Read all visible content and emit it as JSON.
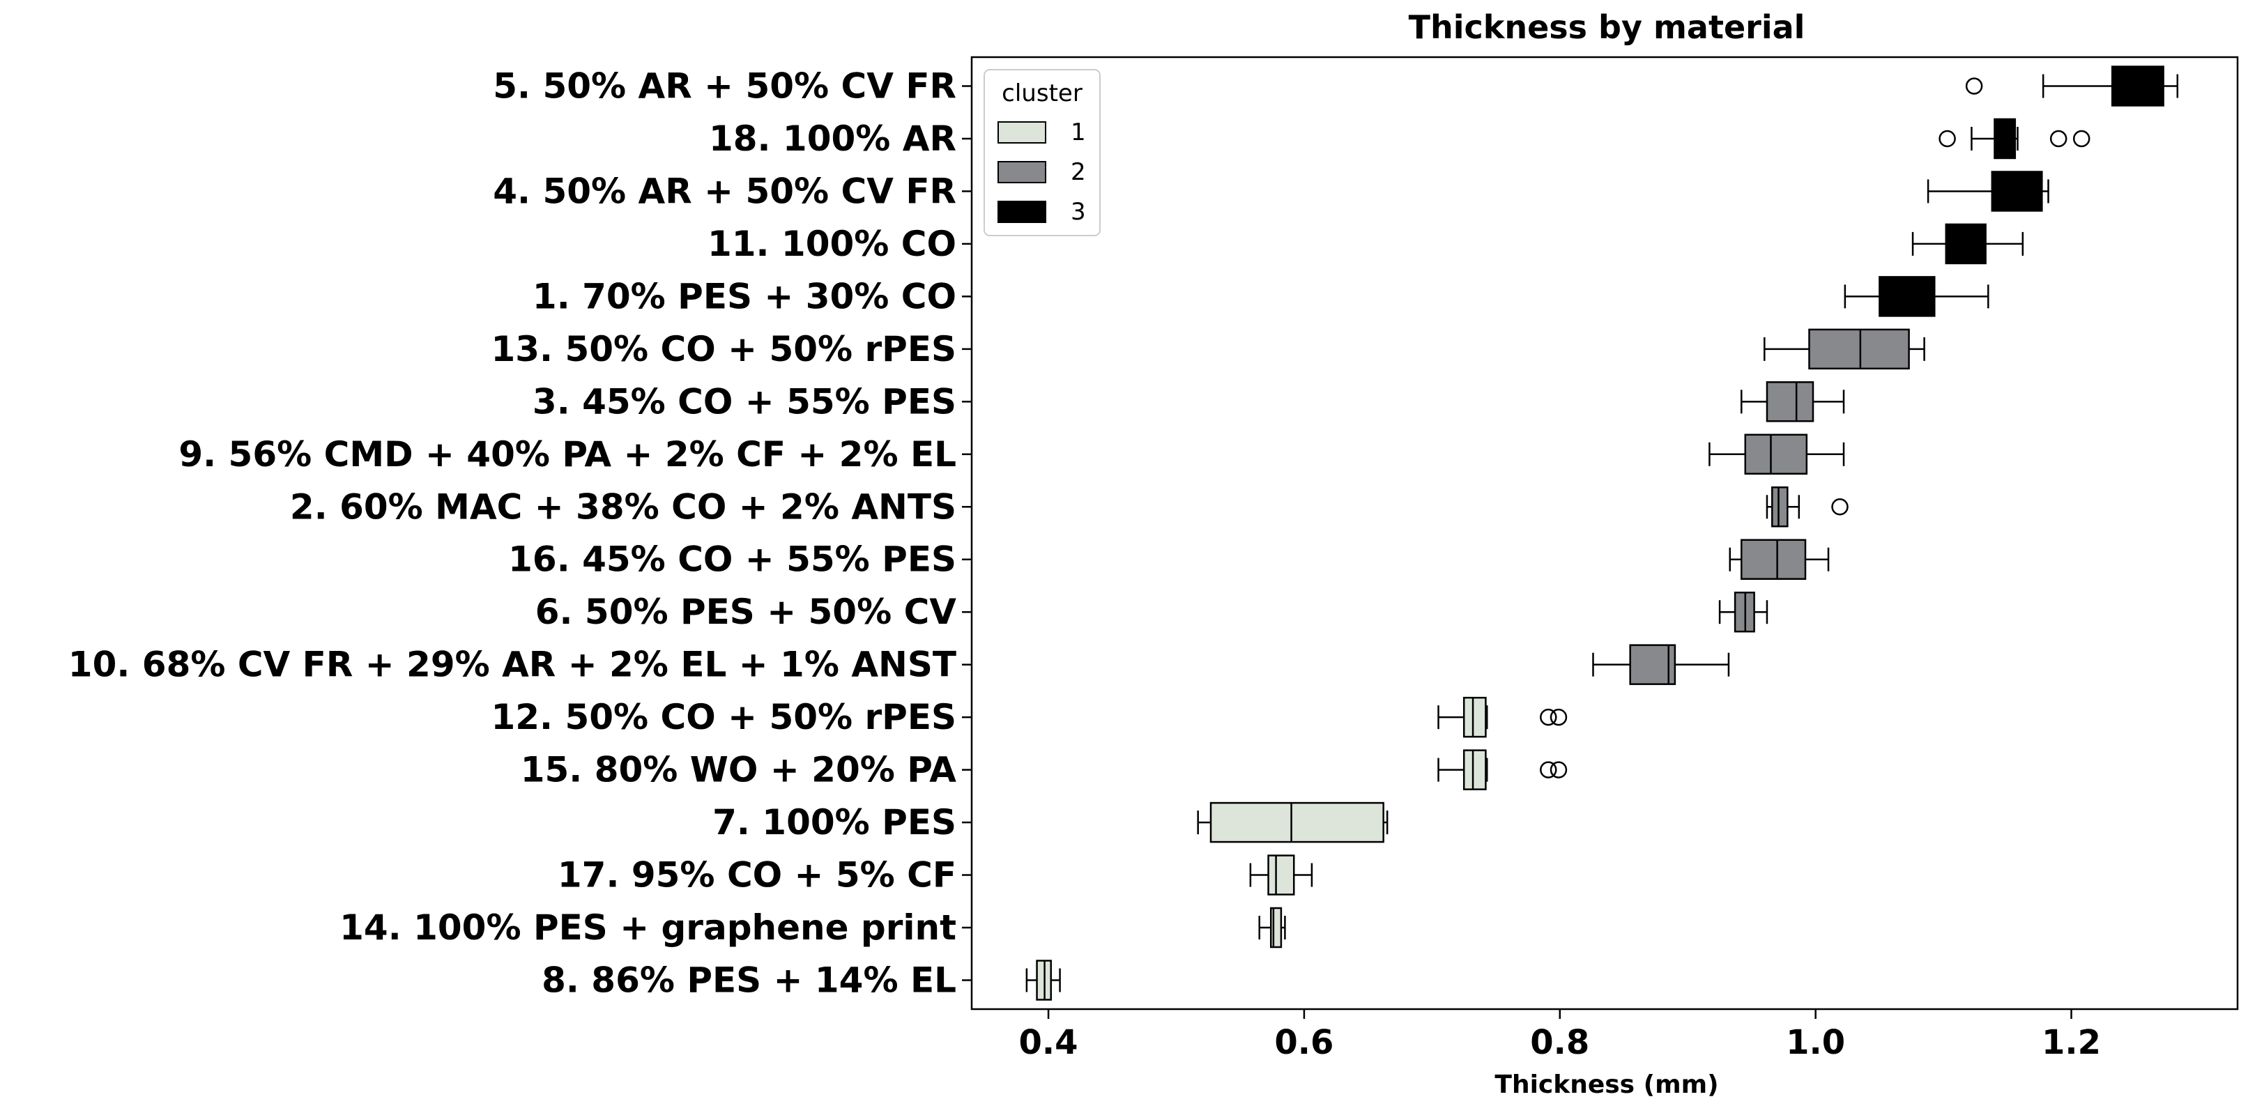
{
  "chart_data": {
    "type": "box",
    "title": "Thickness by material",
    "xlabel": "Thickness  (mm)",
    "ylabel": "",
    "xlim": [
      0.34,
      1.33
    ],
    "xticks": [
      0.4,
      0.6,
      0.8,
      1.0,
      1.2
    ],
    "xtick_labels": [
      "0.4",
      "0.6",
      "0.8",
      "1.0",
      "1.2"
    ],
    "grid": false,
    "legend": {
      "title": "cluster",
      "placement": "top-left",
      "entries": [
        {
          "label": "1",
          "color": "#dde5da"
        },
        {
          "label": "2",
          "color": "#87898c"
        },
        {
          "label": "3",
          "color": "#000000"
        }
      ]
    },
    "series": [
      {
        "category": "5. 50% AR + 50% CV FR",
        "cluster": "3",
        "whisker_low": 1.178,
        "q1": 1.232,
        "median": 1.255,
        "q3": 1.272,
        "whisker_high": 1.283,
        "outliers": [
          1.124
        ]
      },
      {
        "category": "18. 100% AR",
        "cluster": "3",
        "whisker_low": 1.122,
        "q1": 1.14,
        "median": 1.149,
        "q3": 1.156,
        "whisker_high": 1.158,
        "outliers": [
          1.103,
          1.19,
          1.208
        ]
      },
      {
        "category": "4. 50% AR + 50% CV FR",
        "cluster": "3",
        "whisker_low": 1.088,
        "q1": 1.138,
        "median": 1.16,
        "q3": 1.177,
        "whisker_high": 1.182,
        "outliers": []
      },
      {
        "category": "11. 100% CO",
        "cluster": "3",
        "whisker_low": 1.076,
        "q1": 1.102,
        "median": 1.12,
        "q3": 1.133,
        "whisker_high": 1.162,
        "outliers": []
      },
      {
        "category": "1. 70% PES + 30% CO",
        "cluster": "3",
        "whisker_low": 1.023,
        "q1": 1.05,
        "median": 1.07,
        "q3": 1.093,
        "whisker_high": 1.135,
        "outliers": []
      },
      {
        "category": "13. 50% CO + 50% rPES",
        "cluster": "2",
        "whisker_low": 0.96,
        "q1": 0.995,
        "median": 1.035,
        "q3": 1.073,
        "whisker_high": 1.085,
        "outliers": []
      },
      {
        "category": "3. 45% CO + 55% PES",
        "cluster": "2",
        "whisker_low": 0.942,
        "q1": 0.962,
        "median": 0.985,
        "q3": 0.998,
        "whisker_high": 1.022,
        "outliers": []
      },
      {
        "category": "9. 56% CMD + 40% PA + 2% CF + 2% EL",
        "cluster": "2",
        "whisker_low": 0.917,
        "q1": 0.945,
        "median": 0.965,
        "q3": 0.993,
        "whisker_high": 1.022,
        "outliers": []
      },
      {
        "category": "2. 60% MAC + 38% CO + 2% ANTS",
        "cluster": "2",
        "whisker_low": 0.962,
        "q1": 0.966,
        "median": 0.971,
        "q3": 0.978,
        "whisker_high": 0.987,
        "outliers": [
          1.019
        ]
      },
      {
        "category": "16. 45% CO + 55% PES",
        "cluster": "2",
        "whisker_low": 0.933,
        "q1": 0.942,
        "median": 0.97,
        "q3": 0.992,
        "whisker_high": 1.01,
        "outliers": []
      },
      {
        "category": "6. 50% PES + 50% CV",
        "cluster": "2",
        "whisker_low": 0.925,
        "q1": 0.937,
        "median": 0.945,
        "q3": 0.952,
        "whisker_high": 0.962,
        "outliers": []
      },
      {
        "category": "10. 68% CV FR + 29% AR + 2% EL + 1% ANST",
        "cluster": "2",
        "whisker_low": 0.826,
        "q1": 0.855,
        "median": 0.885,
        "q3": 0.89,
        "whisker_high": 0.932,
        "outliers": []
      },
      {
        "category": "12. 50% CO + 50% rPES",
        "cluster": "1",
        "whisker_low": 0.705,
        "q1": 0.725,
        "median": 0.732,
        "q3": 0.742,
        "whisker_high": 0.743,
        "outliers": [
          0.791,
          0.799
        ]
      },
      {
        "category": "15. 80% WO + 20% PA",
        "cluster": "1",
        "whisker_low": 0.705,
        "q1": 0.725,
        "median": 0.732,
        "q3": 0.742,
        "whisker_high": 0.743,
        "outliers": [
          0.791,
          0.799
        ]
      },
      {
        "category": "7. 100% PES",
        "cluster": "1",
        "whisker_low": 0.517,
        "q1": 0.527,
        "median": 0.59,
        "q3": 0.662,
        "whisker_high": 0.665,
        "outliers": []
      },
      {
        "category": "17. 95% CO + 5% CF",
        "cluster": "1",
        "whisker_low": 0.558,
        "q1": 0.572,
        "median": 0.578,
        "q3": 0.592,
        "whisker_high": 0.606,
        "outliers": []
      },
      {
        "category": "14. 100% PES + graphene print",
        "cluster": "1",
        "whisker_low": 0.565,
        "q1": 0.574,
        "median": 0.576,
        "q3": 0.582,
        "whisker_high": 0.585,
        "outliers": []
      },
      {
        "category": "8. 86% PES + 14% EL",
        "cluster": "1",
        "whisker_low": 0.383,
        "q1": 0.391,
        "median": 0.397,
        "q3": 0.402,
        "whisker_high": 0.409,
        "outliers": []
      }
    ]
  }
}
